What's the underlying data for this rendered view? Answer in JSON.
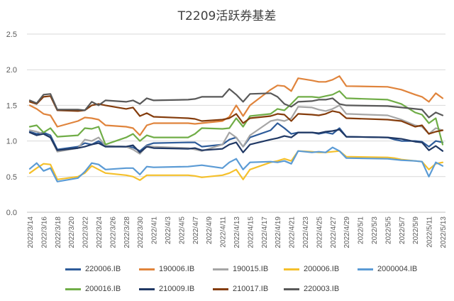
{
  "chart_data": {
    "type": "line",
    "title": "T2209活跃券基差",
    "xlabel": "",
    "ylabel": "",
    "ylim": [
      0.0,
      2.5
    ],
    "y_ticks": [
      "0.0",
      "0.5",
      "1.0",
      "1.5",
      "2.0",
      "2.5"
    ],
    "grid": "horizontal",
    "legend_position": "bottom",
    "x_tick_labels": [
      "2022/3/14",
      "2022/3/16",
      "2022/3/18",
      "2022/3/20",
      "2022/3/22",
      "2022/3/24",
      "2022/3/26",
      "2022/3/28",
      "2022/3/30",
      "2022/4/1",
      "2022/4/3",
      "2022/4/5",
      "2022/4/7",
      "2022/4/9",
      "2022/4/11",
      "2022/4/13",
      "2022/4/15",
      "2022/4/17",
      "2022/4/19",
      "2022/4/21",
      "2022/4/23",
      "2022/4/25",
      "2022/4/27",
      "2022/4/29",
      "2022/5/1",
      "2022/5/3",
      "2022/5/5",
      "2022/5/7",
      "2022/5/9",
      "2022/5/11",
      "2022/5/13"
    ],
    "x_dates": [
      "2022-03-14",
      "2022-03-15",
      "2022-03-16",
      "2022-03-17",
      "2022-03-18",
      "2022-03-21",
      "2022-03-22",
      "2022-03-23",
      "2022-03-24",
      "2022-03-25",
      "2022-03-28",
      "2022-03-29",
      "2022-03-30",
      "2022-03-31",
      "2022-04-01",
      "2022-04-06",
      "2022-04-07",
      "2022-04-08",
      "2022-04-11",
      "2022-04-12",
      "2022-04-13",
      "2022-04-14",
      "2022-04-15",
      "2022-04-18",
      "2022-04-19",
      "2022-04-20",
      "2022-04-21",
      "2022-04-22",
      "2022-04-24",
      "2022-04-25",
      "2022-04-26",
      "2022-04-27",
      "2022-04-28",
      "2022-04-29",
      "2022-05-05",
      "2022-05-06",
      "2022-05-07",
      "2022-05-09",
      "2022-05-10",
      "2022-05-11",
      "2022-05-12",
      "2022-05-13"
    ],
    "series": [
      {
        "name": "220006.IB",
        "color": "#2E5C9A",
        "values": [
          1.13,
          1.1,
          1.12,
          1.08,
          0.88,
          0.92,
          0.97,
          0.95,
          1.0,
          0.93,
          0.92,
          0.91,
          0.86,
          0.94,
          0.97,
          0.98,
          0.98,
          0.92,
          0.95,
          1.02,
          1.05,
          0.92,
          1.05,
          1.15,
          1.25,
          1.18,
          1.1,
          1.12,
          1.12,
          1.1,
          1.12,
          1.1,
          1.18,
          1.06,
          1.05,
          1.02,
          1.0,
          1.0,
          0.99,
          0.92,
          1.0,
          0.98
        ]
      },
      {
        "name": "190006.IB",
        "color": "#E0843C",
        "values": [
          1.5,
          1.45,
          1.38,
          1.36,
          1.2,
          1.28,
          1.33,
          1.32,
          1.3,
          1.22,
          1.2,
          1.18,
          1.08,
          1.22,
          1.25,
          1.25,
          1.24,
          1.25,
          1.28,
          1.34,
          1.5,
          1.35,
          1.5,
          1.72,
          1.78,
          1.77,
          1.7,
          1.88,
          1.85,
          1.83,
          1.83,
          1.86,
          1.91,
          1.77,
          1.76,
          1.74,
          1.72,
          1.65,
          1.62,
          1.55,
          1.67,
          1.6
        ]
      },
      {
        "name": "190015.IB",
        "color": "#A6A6A6",
        "values": [
          1.15,
          1.13,
          1.1,
          1.05,
          0.85,
          0.9,
          1.02,
          1.0,
          1.05,
          0.93,
          0.92,
          0.88,
          0.82,
          0.93,
          0.92,
          0.9,
          0.88,
          0.86,
          0.95,
          1.12,
          1.05,
          0.92,
          1.08,
          1.28,
          1.3,
          1.28,
          1.32,
          1.48,
          1.47,
          1.44,
          1.42,
          1.45,
          1.5,
          1.38,
          1.36,
          1.33,
          1.3,
          1.22,
          1.2,
          1.1,
          1.18,
          1.15
        ]
      },
      {
        "name": "200006.IB",
        "color": "#F5C02B",
        "values": [
          0.55,
          0.62,
          0.68,
          0.67,
          0.46,
          0.5,
          0.55,
          0.65,
          0.6,
          0.55,
          0.52,
          0.5,
          0.45,
          0.52,
          0.52,
          0.52,
          0.51,
          0.49,
          0.52,
          0.55,
          0.6,
          0.46,
          0.6,
          0.7,
          0.72,
          0.75,
          0.72,
          0.86,
          0.85,
          0.84,
          0.84,
          0.85,
          0.86,
          0.78,
          0.77,
          0.76,
          0.74,
          0.72,
          0.71,
          0.6,
          0.68,
          0.7
        ]
      },
      {
        "name": "2000004.IB",
        "color": "#5B9BD5",
        "values": [
          0.61,
          0.69,
          0.58,
          0.62,
          0.43,
          0.48,
          0.57,
          0.69,
          0.67,
          0.6,
          0.62,
          0.62,
          0.53,
          0.64,
          0.63,
          0.64,
          0.65,
          0.66,
          0.62,
          0.7,
          0.75,
          0.6,
          0.7,
          0.71,
          0.7,
          0.72,
          0.68,
          0.86,
          0.84,
          0.85,
          0.84,
          0.91,
          0.86,
          0.76,
          0.75,
          0.74,
          0.73,
          0.72,
          0.71,
          0.5,
          0.7,
          0.65
        ]
      },
      {
        "name": "200016.IB",
        "color": "#70AD47",
        "values": [
          1.2,
          1.22,
          1.12,
          1.18,
          1.06,
          1.08,
          1.18,
          1.17,
          1.2,
          0.95,
          1.05,
          1.1,
          1.0,
          1.08,
          1.05,
          1.05,
          1.1,
          1.18,
          1.17,
          1.18,
          1.32,
          1.2,
          1.35,
          1.38,
          1.45,
          1.43,
          1.52,
          1.62,
          1.62,
          1.61,
          1.63,
          1.65,
          1.7,
          1.6,
          1.58,
          1.55,
          1.52,
          1.4,
          1.37,
          1.25,
          1.32,
          0.95
        ]
      },
      {
        "name": "210009.IB",
        "color": "#203864",
        "values": [
          1.12,
          1.08,
          1.1,
          1.05,
          0.87,
          0.9,
          0.92,
          0.95,
          0.97,
          0.92,
          0.92,
          0.94,
          0.84,
          0.92,
          0.9,
          0.89,
          0.9,
          0.87,
          0.89,
          0.95,
          0.98,
          0.84,
          0.95,
          1.02,
          1.04,
          1.07,
          1.05,
          1.12,
          1.12,
          1.11,
          1.13,
          1.14,
          1.16,
          1.06,
          1.05,
          1.04,
          1.03,
          0.99,
          0.98,
          0.87,
          0.93,
          0.86
        ]
      },
      {
        "name": "210017.IB",
        "color": "#843C0C",
        "values": [
          1.55,
          1.52,
          1.62,
          1.63,
          1.43,
          1.42,
          1.43,
          1.5,
          1.52,
          1.5,
          1.45,
          1.47,
          1.35,
          1.39,
          1.34,
          1.32,
          1.31,
          1.28,
          1.3,
          1.32,
          1.38,
          1.25,
          1.32,
          1.35,
          1.38,
          1.37,
          1.28,
          1.38,
          1.37,
          1.36,
          1.38,
          1.42,
          1.4,
          1.32,
          1.3,
          1.29,
          1.28,
          1.2,
          1.22,
          1.1,
          1.13,
          1.15
        ]
      },
      {
        "name": "220003.IB",
        "color": "#595959",
        "values": [
          1.57,
          1.53,
          1.65,
          1.66,
          1.44,
          1.44,
          1.43,
          1.55,
          1.5,
          1.57,
          1.55,
          1.57,
          1.52,
          1.6,
          1.57,
          1.58,
          1.59,
          1.62,
          1.62,
          1.73,
          1.65,
          1.55,
          1.66,
          1.67,
          1.62,
          1.52,
          1.48,
          1.55,
          1.56,
          1.58,
          1.58,
          1.6,
          1.52,
          1.5,
          1.49,
          1.48,
          1.47,
          1.45,
          1.44,
          1.33,
          1.4,
          1.36
        ]
      }
    ]
  }
}
